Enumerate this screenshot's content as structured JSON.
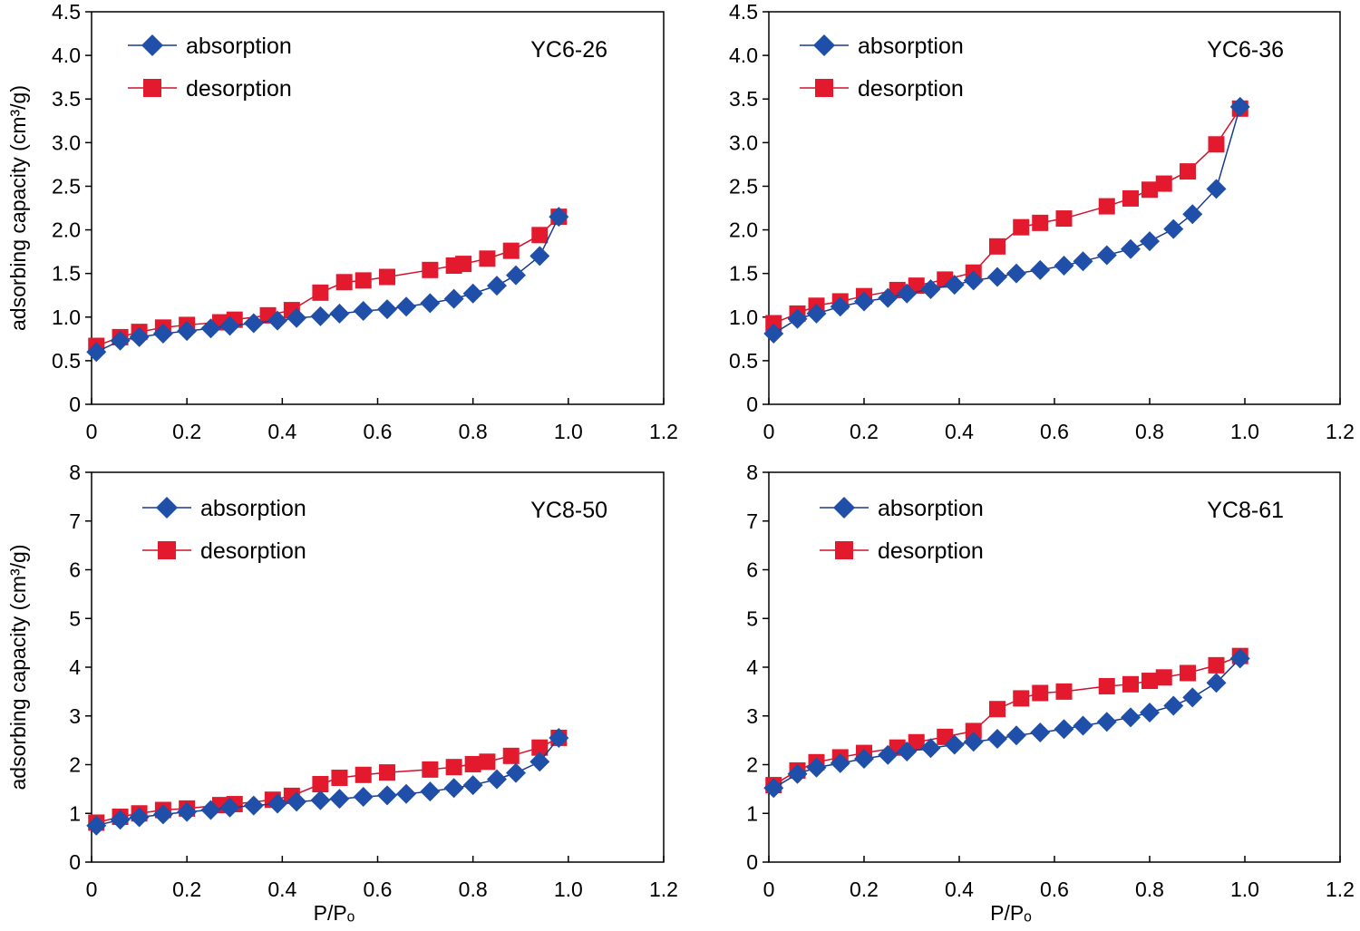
{
  "colors": {
    "absorption_line": "#1a3a8f",
    "absorption_marker": "#1f4fa8",
    "desorption_line": "#d0102a",
    "desorption_marker": "#e3192e",
    "axis": "#000000"
  },
  "chart_data": [
    {
      "type": "line",
      "sample": "YC6-26",
      "xlabel": "",
      "ylabel": "adsorbing capacity (cm³/g)",
      "xlim": [
        0,
        1.2
      ],
      "ylim": [
        0,
        4.5
      ],
      "xticks": [
        "0",
        "0.2",
        "0.4",
        "0.6",
        "0.8",
        "1.0",
        "1.2"
      ],
      "yticks": [
        "0",
        "0.5",
        "1.0",
        "1.5",
        "2.0",
        "2.5",
        "3.0",
        "3.5",
        "4.0",
        "4.5"
      ],
      "legend": [
        "absorption",
        "desorption"
      ],
      "series": [
        {
          "name": "absorption",
          "marker": "diamond",
          "x": [
            0.01,
            0.06,
            0.1,
            0.15,
            0.2,
            0.25,
            0.29,
            0.34,
            0.39,
            0.43,
            0.48,
            0.52,
            0.57,
            0.62,
            0.66,
            0.71,
            0.76,
            0.8,
            0.85,
            0.89,
            0.94,
            0.98
          ],
          "y": [
            0.6,
            0.73,
            0.77,
            0.81,
            0.84,
            0.87,
            0.9,
            0.93,
            0.96,
            0.99,
            1.01,
            1.04,
            1.07,
            1.09,
            1.12,
            1.16,
            1.21,
            1.27,
            1.36,
            1.48,
            1.7,
            2.15
          ]
        },
        {
          "name": "desorption",
          "marker": "square",
          "x": [
            0.01,
            0.06,
            0.1,
            0.15,
            0.2,
            0.27,
            0.3,
            0.37,
            0.42,
            0.48,
            0.53,
            0.57,
            0.62,
            0.71,
            0.76,
            0.78,
            0.83,
            0.88,
            0.94,
            0.98
          ],
          "y": [
            0.67,
            0.77,
            0.83,
            0.88,
            0.91,
            0.94,
            0.97,
            1.02,
            1.08,
            1.28,
            1.4,
            1.42,
            1.46,
            1.54,
            1.59,
            1.61,
            1.67,
            1.76,
            1.94,
            2.15
          ]
        }
      ]
    },
    {
      "type": "line",
      "sample": "YC6-36",
      "xlabel": "",
      "ylabel": "",
      "xlim": [
        0,
        1.2
      ],
      "ylim": [
        0,
        4.5
      ],
      "xticks": [
        "0",
        "0.2",
        "0.4",
        "0.6",
        "0.8",
        "1.0",
        "1.2"
      ],
      "yticks": [
        "0",
        "0.5",
        "1.0",
        "1.5",
        "2.0",
        "2.5",
        "3.0",
        "3.5",
        "4.0",
        "4.5"
      ],
      "legend": [
        "absorption",
        "desorption"
      ],
      "series": [
        {
          "name": "absorption",
          "marker": "diamond",
          "x": [
            0.01,
            0.06,
            0.1,
            0.15,
            0.2,
            0.25,
            0.29,
            0.34,
            0.39,
            0.43,
            0.48,
            0.52,
            0.57,
            0.62,
            0.66,
            0.71,
            0.76,
            0.8,
            0.85,
            0.89,
            0.94,
            0.99
          ],
          "y": [
            0.81,
            0.98,
            1.04,
            1.12,
            1.18,
            1.22,
            1.27,
            1.32,
            1.37,
            1.42,
            1.46,
            1.5,
            1.54,
            1.59,
            1.64,
            1.71,
            1.78,
            1.87,
            2.01,
            2.18,
            2.47,
            3.41
          ]
        },
        {
          "name": "desorption",
          "marker": "square",
          "x": [
            0.01,
            0.06,
            0.1,
            0.15,
            0.2,
            0.27,
            0.31,
            0.37,
            0.43,
            0.48,
            0.53,
            0.57,
            0.62,
            0.71,
            0.76,
            0.8,
            0.83,
            0.88,
            0.94,
            0.99
          ],
          "y": [
            0.93,
            1.04,
            1.13,
            1.18,
            1.24,
            1.31,
            1.36,
            1.43,
            1.51,
            1.81,
            2.03,
            2.08,
            2.13,
            2.27,
            2.36,
            2.46,
            2.53,
            2.67,
            2.98,
            3.39
          ]
        }
      ]
    },
    {
      "type": "line",
      "sample": "YC8-50",
      "xlabel": "P/Pₒ",
      "ylabel": "adsorbing capacity (cm³/g)",
      "xlim": [
        0,
        1.2
      ],
      "ylim": [
        0,
        8
      ],
      "xticks": [
        "0",
        "0.2",
        "0.4",
        "0.6",
        "0.8",
        "1.0",
        "1.2"
      ],
      "yticks": [
        "0",
        "1",
        "2",
        "3",
        "4",
        "5",
        "6",
        "7",
        "8"
      ],
      "legend": [
        "absorption",
        "desorption"
      ],
      "series": [
        {
          "name": "absorption",
          "marker": "diamond",
          "x": [
            0.01,
            0.06,
            0.1,
            0.15,
            0.2,
            0.25,
            0.29,
            0.34,
            0.39,
            0.43,
            0.48,
            0.52,
            0.57,
            0.62,
            0.66,
            0.71,
            0.76,
            0.8,
            0.85,
            0.89,
            0.94,
            0.98
          ],
          "y": [
            0.75,
            0.87,
            0.92,
            0.98,
            1.03,
            1.07,
            1.12,
            1.16,
            1.2,
            1.24,
            1.27,
            1.3,
            1.34,
            1.37,
            1.4,
            1.45,
            1.52,
            1.58,
            1.7,
            1.83,
            2.06,
            2.55
          ]
        },
        {
          "name": "desorption",
          "marker": "square",
          "x": [
            0.01,
            0.06,
            0.1,
            0.15,
            0.2,
            0.27,
            0.3,
            0.38,
            0.42,
            0.48,
            0.52,
            0.57,
            0.62,
            0.71,
            0.76,
            0.8,
            0.83,
            0.88,
            0.94,
            0.98
          ],
          "y": [
            0.81,
            0.93,
            1.0,
            1.07,
            1.1,
            1.17,
            1.19,
            1.28,
            1.36,
            1.6,
            1.73,
            1.79,
            1.84,
            1.9,
            1.95,
            2.01,
            2.06,
            2.18,
            2.35,
            2.55
          ]
        }
      ]
    },
    {
      "type": "line",
      "sample": "YC8-61",
      "xlabel": "P/Pₒ",
      "ylabel": "",
      "xlim": [
        0,
        1.2
      ],
      "ylim": [
        0,
        8
      ],
      "xticks": [
        "0",
        "0.2",
        "0.4",
        "0.6",
        "0.8",
        "1.0",
        "1.2"
      ],
      "yticks": [
        "0",
        "1",
        "2",
        "3",
        "4",
        "5",
        "6",
        "7",
        "8"
      ],
      "legend": [
        "absorption",
        "desorption"
      ],
      "series": [
        {
          "name": "absorption",
          "marker": "diamond",
          "x": [
            0.01,
            0.06,
            0.1,
            0.15,
            0.2,
            0.25,
            0.29,
            0.34,
            0.39,
            0.43,
            0.48,
            0.52,
            0.57,
            0.62,
            0.66,
            0.71,
            0.76,
            0.8,
            0.85,
            0.89,
            0.94,
            0.99
          ],
          "y": [
            1.52,
            1.81,
            1.94,
            2.03,
            2.12,
            2.2,
            2.27,
            2.34,
            2.41,
            2.47,
            2.53,
            2.6,
            2.66,
            2.73,
            2.8,
            2.88,
            2.97,
            3.07,
            3.21,
            3.38,
            3.68,
            4.18
          ]
        },
        {
          "name": "desorption",
          "marker": "square",
          "x": [
            0.01,
            0.06,
            0.1,
            0.15,
            0.2,
            0.27,
            0.31,
            0.37,
            0.43,
            0.48,
            0.53,
            0.57,
            0.62,
            0.71,
            0.76,
            0.8,
            0.83,
            0.88,
            0.94,
            0.99
          ],
          "y": [
            1.58,
            1.88,
            2.05,
            2.15,
            2.24,
            2.35,
            2.46,
            2.57,
            2.69,
            3.14,
            3.36,
            3.47,
            3.5,
            3.61,
            3.65,
            3.72,
            3.79,
            3.88,
            4.04,
            4.23
          ]
        }
      ]
    }
  ]
}
